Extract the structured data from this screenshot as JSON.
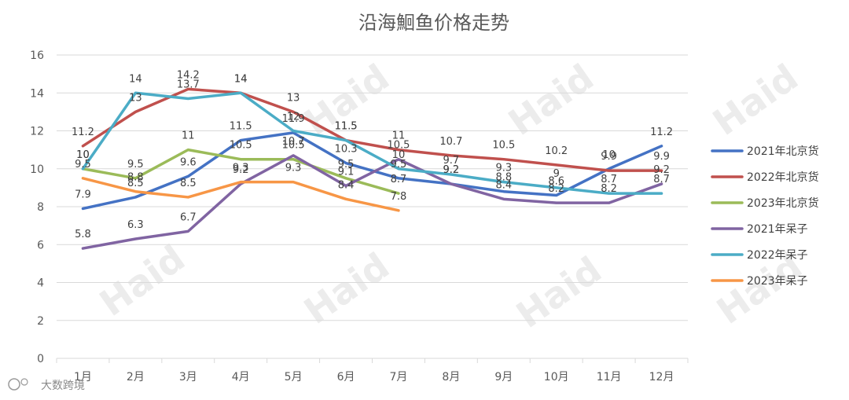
{
  "chart_data": {
    "type": "line",
    "title": "沿海鮰鱼价格走势",
    "categories": [
      "1月",
      "2月",
      "3月",
      "4月",
      "5月",
      "6月",
      "7月",
      "8月",
      "9月",
      "10月",
      "11月",
      "12月"
    ],
    "ylim": [
      0,
      16
    ],
    "yticks": [
      "0",
      "2",
      "4",
      "6",
      "8",
      "10",
      "12",
      "14",
      "16"
    ],
    "grid": "horizontal",
    "legend_position": "right",
    "series": [
      {
        "name": "2021年北京货",
        "color": "#4472C4",
        "values": [
          7.9,
          8.5,
          9.6,
          11.5,
          11.9,
          10.3,
          9.5,
          9.2,
          8.8,
          8.6,
          10,
          11.2
        ]
      },
      {
        "name": "2022年北京货",
        "color": "#C0504D",
        "values": [
          11.2,
          13,
          14.2,
          14,
          13,
          11.5,
          11,
          10.7,
          10.5,
          10.2,
          9.9,
          9.9
        ]
      },
      {
        "name": "2023年北京货",
        "color": "#9BBB59",
        "values": [
          10,
          9.5,
          11,
          10.5,
          10.5,
          9.5,
          8.7,
          null,
          null,
          null,
          null,
          null
        ]
      },
      {
        "name": "2021年呆子",
        "color": "#8064A2",
        "values": [
          5.8,
          6.3,
          6.7,
          9.2,
          10.7,
          9.1,
          10.5,
          9.2,
          8.4,
          8.2,
          8.2,
          9.2
        ]
      },
      {
        "name": "2022年呆子",
        "color": "#4BACC6",
        "values": [
          10,
          14,
          13.7,
          14,
          12,
          11.5,
          10,
          9.7,
          9.3,
          9,
          8.7,
          8.7
        ]
      },
      {
        "name": "2023年呆子",
        "color": "#F79646",
        "values": [
          9.5,
          8.8,
          8.5,
          9.3,
          9.3,
          8.4,
          7.8,
          null,
          null,
          null,
          null,
          null
        ]
      }
    ]
  },
  "watermark_text": "大数跨境",
  "brand_text": "Haid"
}
